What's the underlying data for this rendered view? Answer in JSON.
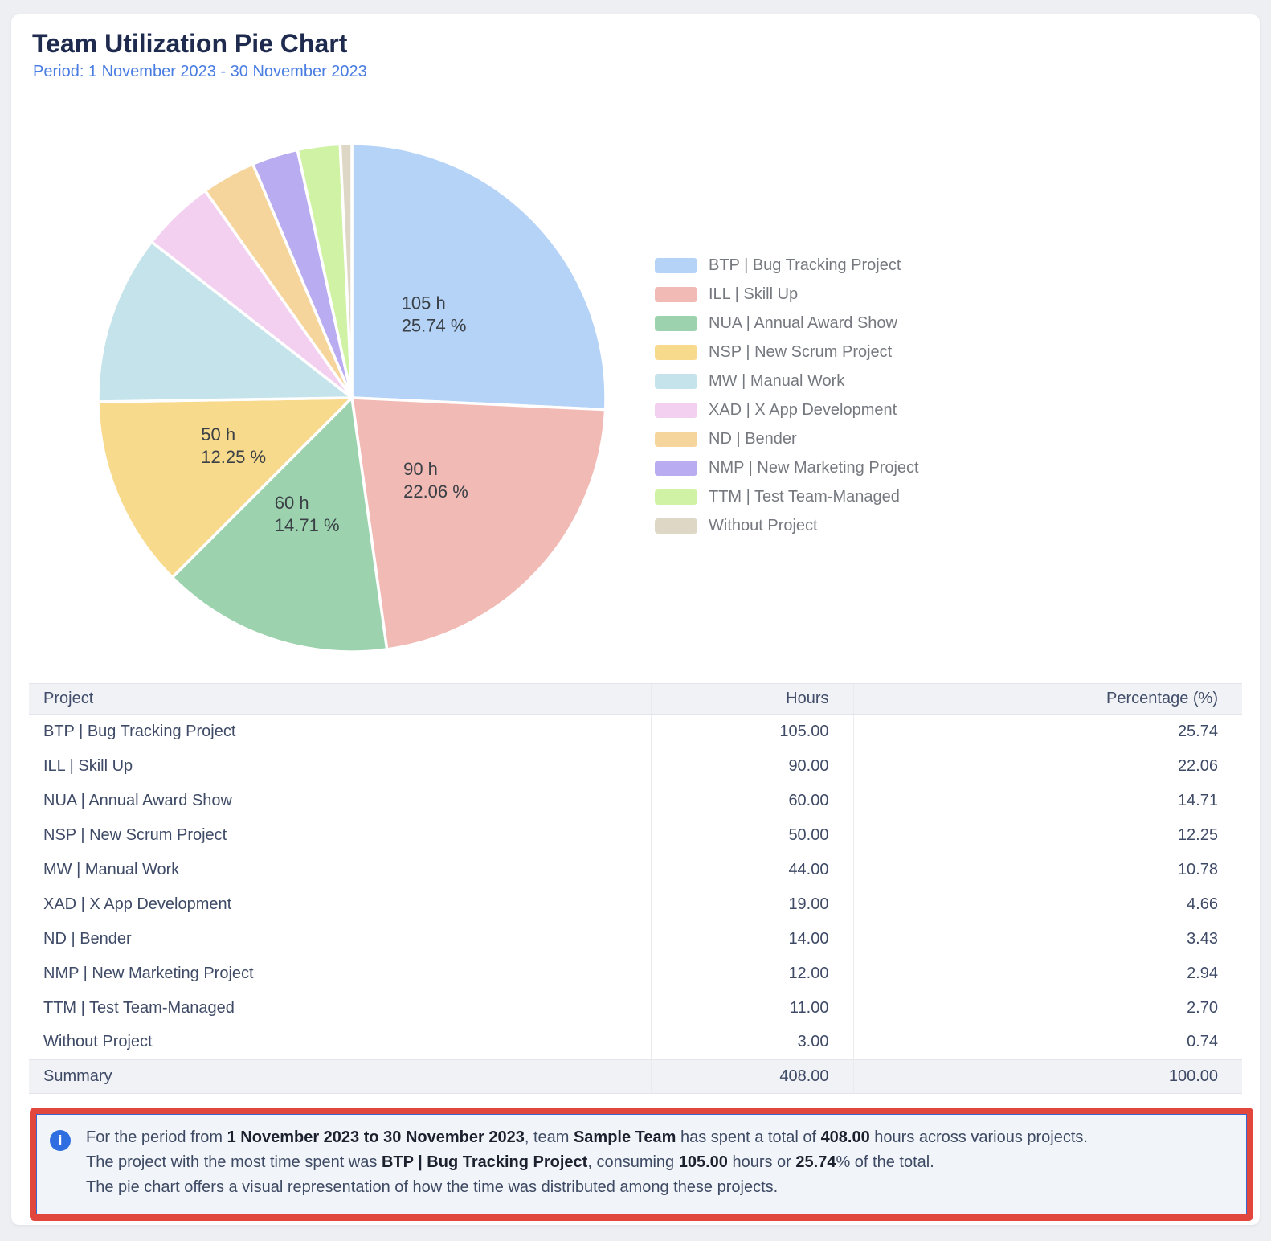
{
  "header": {
    "title": "Team Utilization Pie Chart",
    "period": "Period: 1 November 2023 - 30 November 2023"
  },
  "chart_data": {
    "type": "pie",
    "title": "Team Utilization Pie Chart",
    "period": "1 November 2023 - 30 November 2023",
    "start_angle": "top",
    "direction": "clockwise",
    "legend_position": "right",
    "total_hours": "408.00",
    "slices": [
      {
        "name": "BTP | Bug Tracking Project",
        "hours": 105.0,
        "pct": 25.74,
        "color": "#b5d3f7",
        "label_lines": [
          "105 h",
          "25.74 %"
        ]
      },
      {
        "name": "ILL | Skill Up",
        "hours": 90.0,
        "pct": 22.06,
        "color": "#f1bab4",
        "label_lines": [
          "90 h",
          "22.06 %"
        ]
      },
      {
        "name": "NUA | Annual Award Show",
        "hours": 60.0,
        "pct": 14.71,
        "color": "#9cd3ae",
        "label_lines": [
          "60 h",
          "14.71 %"
        ]
      },
      {
        "name": "NSP | New Scrum Project",
        "hours": 50.0,
        "pct": 12.25,
        "color": "#f8da8c",
        "label_lines": [
          "50 h",
          "12.25 %"
        ]
      },
      {
        "name": "MW | Manual Work",
        "hours": 44.0,
        "pct": 10.78,
        "color": "#c4e3ea",
        "label_lines": null
      },
      {
        "name": "XAD | X App Development",
        "hours": 19.0,
        "pct": 4.66,
        "color": "#f3cff0",
        "label_lines": null
      },
      {
        "name": "ND | Bender",
        "hours": 14.0,
        "pct": 3.43,
        "color": "#f6d59d",
        "label_lines": null
      },
      {
        "name": "NMP | New Marketing Project",
        "hours": 12.0,
        "pct": 2.94,
        "color": "#b9acf0",
        "label_lines": null
      },
      {
        "name": "TTM | Test Team-Managed",
        "hours": 11.0,
        "pct": 2.7,
        "color": "#cff2a4",
        "label_lines": null
      },
      {
        "name": "Without Project",
        "hours": 3.0,
        "pct": 0.74,
        "color": "#ded7c6",
        "label_lines": null
      }
    ]
  },
  "table": {
    "columns": [
      "Project",
      "Hours",
      "Percentage (%)"
    ],
    "rows": [
      [
        "BTP | Bug Tracking Project",
        "105.00",
        "25.74"
      ],
      [
        "ILL | Skill Up",
        "90.00",
        "22.06"
      ],
      [
        "NUA | Annual Award Show",
        "60.00",
        "14.71"
      ],
      [
        "NSP | New Scrum Project",
        "50.00",
        "12.25"
      ],
      [
        "MW | Manual Work",
        "44.00",
        "10.78"
      ],
      [
        "XAD | X App Development",
        "19.00",
        "4.66"
      ],
      [
        "ND | Bender",
        "14.00",
        "3.43"
      ],
      [
        "NMP | New Marketing Project",
        "12.00",
        "2.94"
      ],
      [
        "TTM | Test Team-Managed",
        "11.00",
        "2.70"
      ],
      [
        "Without Project",
        "3.00",
        "0.74"
      ]
    ],
    "summary": [
      "Summary",
      "408.00",
      "100.00"
    ]
  },
  "summary_note": {
    "icon": "info-icon",
    "icon_glyph": "i",
    "highlight_border_color": "#e2473e",
    "lines": [
      [
        {
          "t": "For the period from ",
          "b": false
        },
        {
          "t": "1 November 2023 to 30 November 2023",
          "b": true
        },
        {
          "t": ", team ",
          "b": false
        },
        {
          "t": "Sample Team",
          "b": true
        },
        {
          "t": " has spent a total of ",
          "b": false
        },
        {
          "t": "408.00",
          "b": true
        },
        {
          "t": " hours across various projects.",
          "b": false
        }
      ],
      [
        {
          "t": "The project with the most time spent was ",
          "b": false
        },
        {
          "t": "BTP | Bug Tracking Project",
          "b": true
        },
        {
          "t": ", consuming ",
          "b": false
        },
        {
          "t": "105.00",
          "b": true
        },
        {
          "t": " hours or ",
          "b": false
        },
        {
          "t": "25.74",
          "b": true
        },
        {
          "t": "% of the total.",
          "b": false
        }
      ],
      [
        {
          "t": "The pie chart offers a visual representation of how the time was distributed among these projects.",
          "b": false
        }
      ]
    ]
  }
}
